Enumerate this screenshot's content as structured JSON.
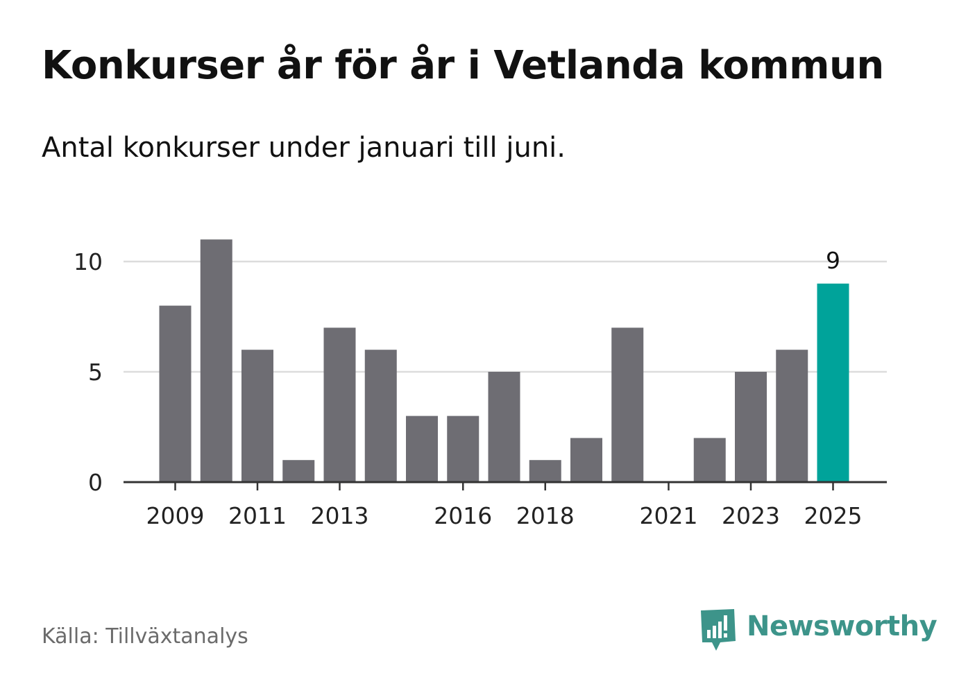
{
  "header": {
    "title": "Konkurser år för år i Vetlanda kommun",
    "subtitle": "Antal konkurser under januari till juni."
  },
  "footer": {
    "source": "Källa: Tillväxtanalys",
    "brand": "Newsworthy",
    "brand_icon": "bar-chart-speech-bubble-icon"
  },
  "colors": {
    "bar": "#6e6d73",
    "highlight": "#00a39a",
    "grid": "#dcdcdc",
    "axis": "#333333",
    "brand": "#3d948a"
  },
  "chart_data": {
    "type": "bar",
    "categories": [
      "2009",
      "2010",
      "2011",
      "2012",
      "2013",
      "2014",
      "2015",
      "2016",
      "2017",
      "2018",
      "2019",
      "2020",
      "2021",
      "2022",
      "2023",
      "2024",
      "2025"
    ],
    "values": [
      8,
      11,
      6,
      1,
      7,
      6,
      3,
      3,
      5,
      1,
      2,
      7,
      0,
      2,
      5,
      6,
      9
    ],
    "highlight_index": 16,
    "highlight_label": "9",
    "x_tick_labels": [
      "2009",
      "2011",
      "2013",
      "2016",
      "2018",
      "2021",
      "2023",
      "2025"
    ],
    "y_ticks": [
      0,
      5,
      10
    ],
    "ylim": [
      0,
      11
    ],
    "grid": true,
    "xlabel": "",
    "ylabel": ""
  }
}
